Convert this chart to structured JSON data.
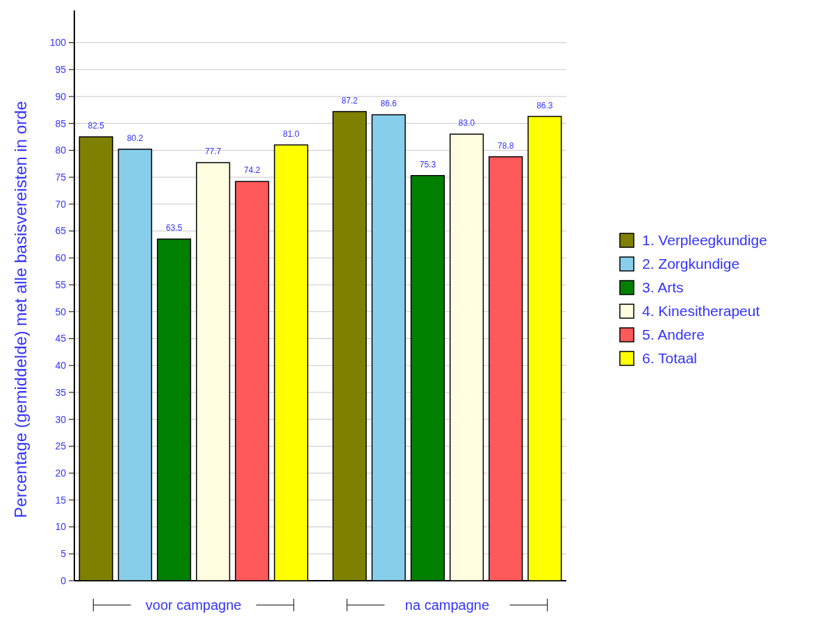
{
  "chart_data": {
    "type": "bar",
    "ylabel": "Percentage  (gemiddelde) met alle basisvereisten in orde",
    "categories": [
      "voor campagne",
      "na campagne"
    ],
    "series": [
      {
        "name": "1. Verpleegkundige",
        "color": "#808000",
        "values": [
          82.5,
          87.2
        ],
        "value_labels": [
          "82.5",
          "87.2"
        ]
      },
      {
        "name": "2. Zorgkundige",
        "color": "#87ceeb",
        "values": [
          80.2,
          86.6
        ],
        "value_labels": [
          "80.2",
          "86.6"
        ]
      },
      {
        "name": "3. Arts",
        "color": "#008000",
        "values": [
          63.5,
          75.3
        ],
        "value_labels": [
          "63.5",
          "75.3"
        ]
      },
      {
        "name": "4. Kinesitherapeut",
        "color": "#fffde0",
        "values": [
          77.7,
          83.0
        ],
        "value_labels": [
          "77.7",
          "83.0"
        ]
      },
      {
        "name": "5. Andere",
        "color": "#ff5a5a",
        "values": [
          74.2,
          78.8
        ],
        "value_labels": [
          "74.2",
          "78.8"
        ]
      },
      {
        "name": "6. Totaal",
        "color": "#ffff00",
        "values": [
          81.0,
          86.3
        ],
        "value_labels": [
          "81.0",
          "86.3"
        ]
      }
    ],
    "ylim": [
      0,
      106
    ],
    "yticks": [
      0,
      5,
      10,
      15,
      20,
      25,
      30,
      35,
      40,
      45,
      50,
      55,
      60,
      65,
      70,
      75,
      80,
      85,
      90,
      95,
      100
    ],
    "grid": "y",
    "legend": "right"
  }
}
